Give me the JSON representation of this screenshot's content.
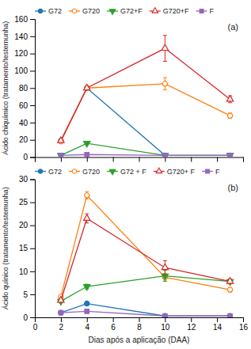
{
  "chart_data": [
    {
      "type": "line",
      "ylabel": "Ácido chiquímico (tratamento/testemunha)",
      "annotation": "(a)",
      "x": [
        2,
        4,
        10,
        15
      ],
      "series": [
        {
          "name": "G72",
          "marker": "circle",
          "line_style": "solid",
          "values": [
            19,
            80,
            2,
            2
          ],
          "errors": [
            1,
            2,
            0.5,
            0.5
          ]
        },
        {
          "name": "G720",
          "marker": "circle-open",
          "line_style": "solid",
          "values": [
            18,
            80,
            85,
            48
          ],
          "errors": [
            1,
            2,
            7,
            3
          ]
        },
        {
          "name": "G72+F",
          "marker": "triangle-down",
          "line_style": "solid",
          "values": [
            2,
            16,
            2,
            2
          ],
          "errors": [
            0.3,
            1,
            0.3,
            0.3
          ]
        },
        {
          "name": "G720+F",
          "marker": "triangle-up-open",
          "line_style": "solid",
          "values": [
            19,
            80,
            126,
            67
          ],
          "errors": [
            1,
            2,
            15,
            4
          ]
        },
        {
          "name": "F",
          "marker": "square",
          "line_style": "solid",
          "values": [
            2,
            3,
            2,
            2
          ],
          "errors": [
            0.3,
            0.3,
            0.3,
            0.3
          ]
        }
      ],
      "xlim": [
        0,
        16
      ],
      "xticks": [
        0,
        2,
        4,
        6,
        8,
        10,
        12,
        14,
        16
      ],
      "ylim": [
        0,
        160
      ],
      "yticks": [
        0,
        20,
        40,
        60,
        80,
        100,
        120,
        140,
        160
      ],
      "tick_labels": "y",
      "legend": "top",
      "grid": false
    },
    {
      "type": "line",
      "ylabel": "Ácido quínico (tratamento/testemunha)",
      "xlabel": "Dias após a aplicação (DAA)",
      "annotation": "(b)",
      "x": [
        2,
        4,
        10,
        15
      ],
      "series": [
        {
          "name": "G72",
          "marker": "circle",
          "line_style": "solid",
          "values": [
            1.0,
            3.0,
            0.3,
            0.3
          ],
          "errors": [
            0.1,
            0.3,
            0.05,
            0.05
          ]
        },
        {
          "name": "G720",
          "marker": "circle-open",
          "line_style": "solid",
          "values": [
            4.5,
            26.5,
            8.7,
            6.0
          ],
          "errors": [
            0.3,
            0.8,
            0.8,
            0.5
          ]
        },
        {
          "name": "G72 + F",
          "marker": "triangle-down",
          "line_style": "solid",
          "values": [
            3.5,
            6.7,
            9.0,
            7.8
          ],
          "errors": [
            0.3,
            0.5,
            1.2,
            0.5
          ]
        },
        {
          "name": "G720+ F",
          "marker": "triangle-up-open",
          "line_style": "solid",
          "values": [
            3.7,
            21.5,
            10.8,
            7.8
          ],
          "errors": [
            0.3,
            1.0,
            1.5,
            0.5
          ]
        },
        {
          "name": "F",
          "marker": "square",
          "line_style": "solid",
          "values": [
            1.0,
            1.3,
            0.3,
            0.3
          ],
          "errors": [
            0.1,
            0.1,
            0.05,
            0.05
          ]
        }
      ],
      "xlim": [
        0,
        16
      ],
      "xticks": [
        0,
        2,
        4,
        6,
        8,
        10,
        12,
        14,
        16
      ],
      "ylim": [
        0,
        30
      ],
      "yticks": [
        0,
        5,
        10,
        15,
        20,
        25,
        30
      ],
      "tick_labels": true,
      "legend": "top",
      "grid": false
    }
  ]
}
